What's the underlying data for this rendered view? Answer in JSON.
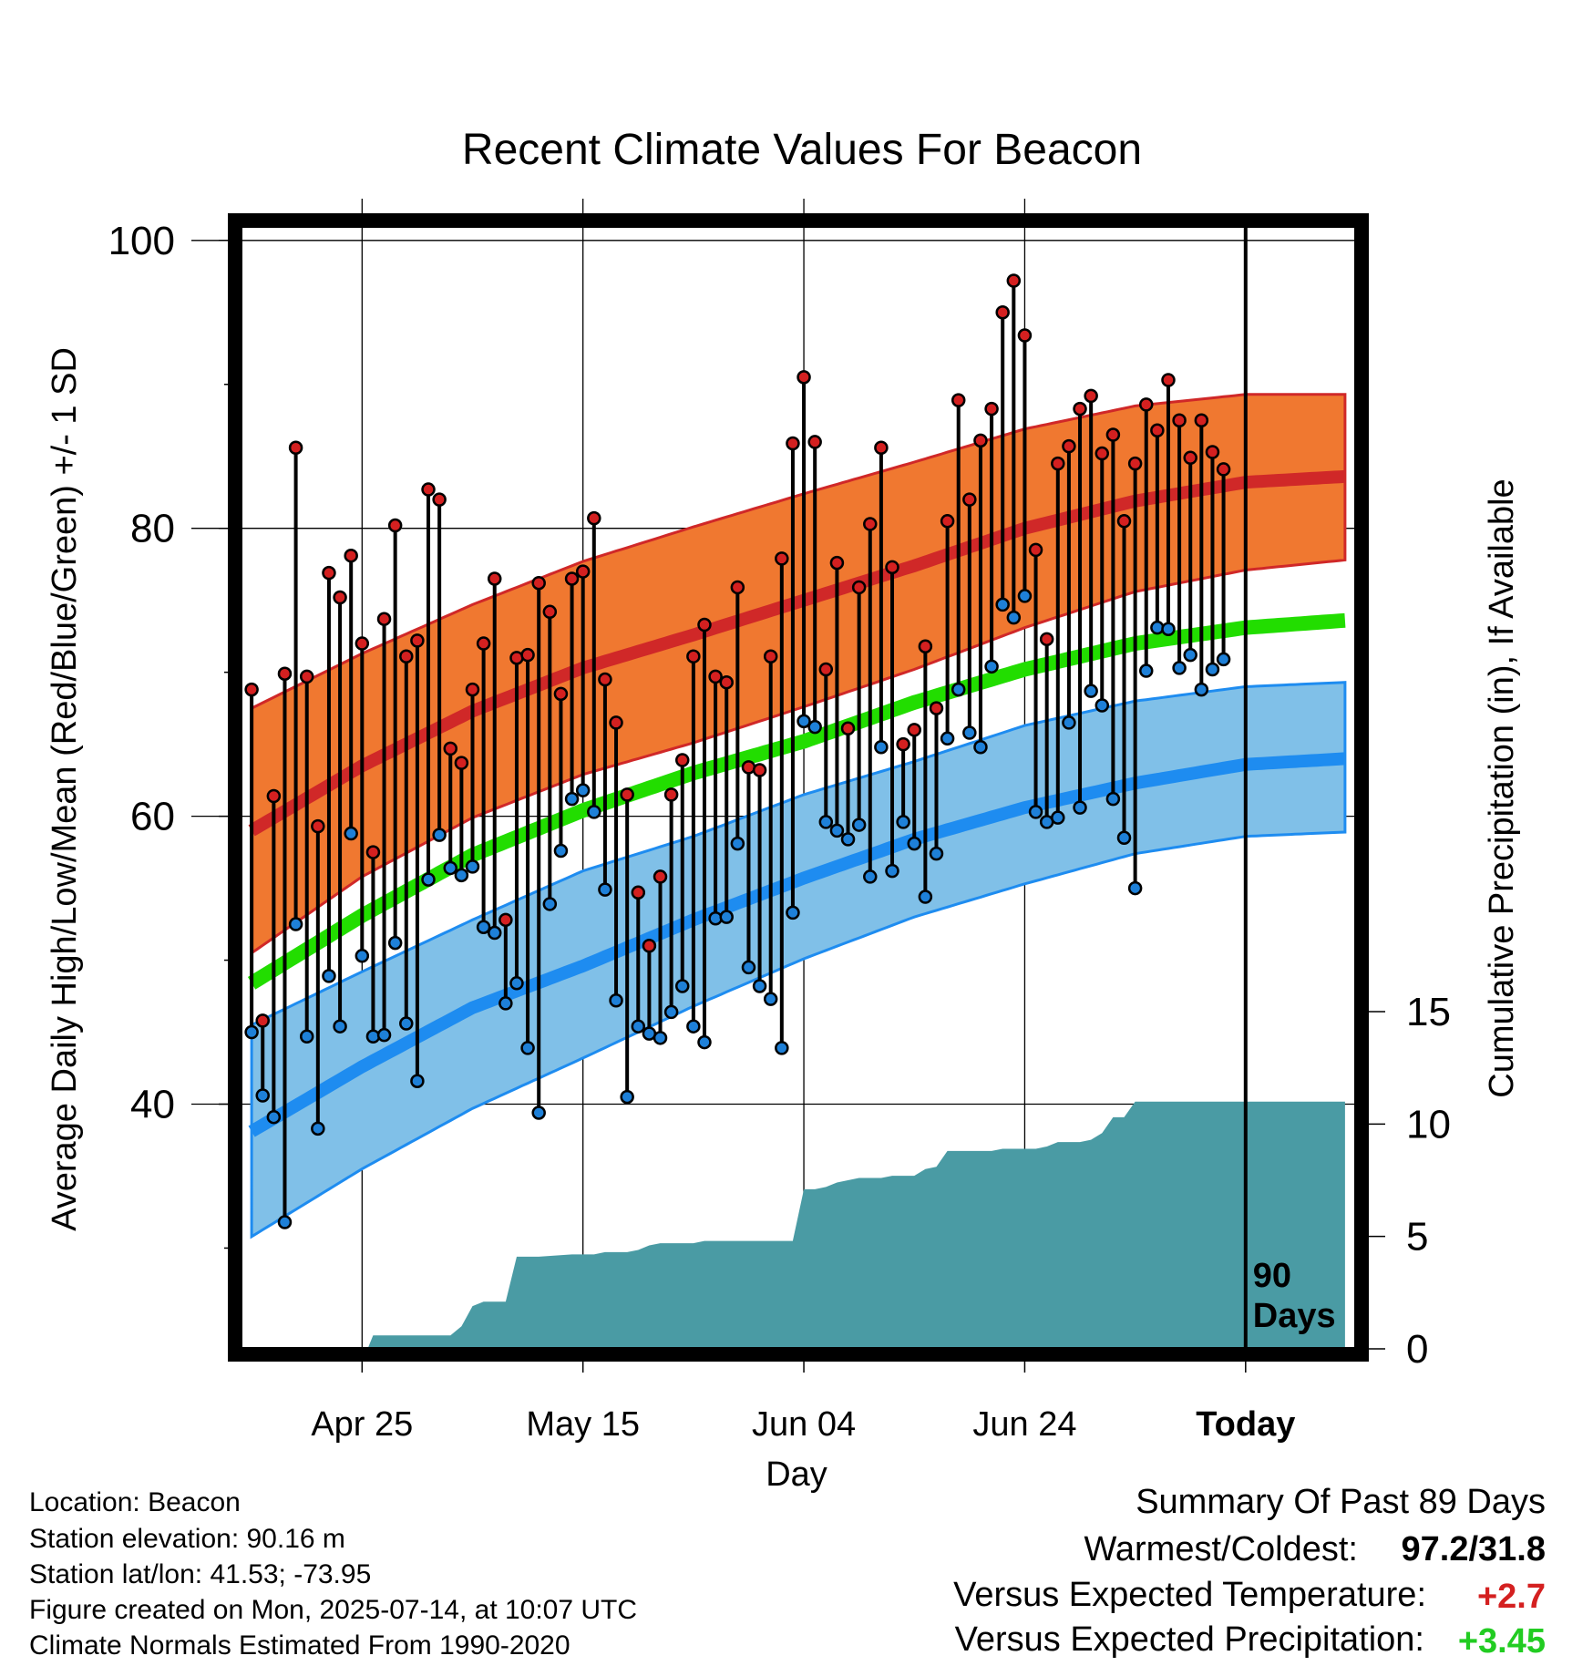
{
  "chart_data": {
    "type": "line",
    "title": "Recent Climate Values For Beacon",
    "xlabel": "Day",
    "ylabel": "Average Daily High/Low/Mean (Red/Blue/Green) +/- 1 SD",
    "y2label": "Cumulative Precipitation (in), If Available",
    "x_range": [
      -1,
      100
    ],
    "ylim": [
      23,
      101
    ],
    "y2lim": [
      0,
      15
    ],
    "y_ticks": [
      100,
      80,
      60,
      40
    ],
    "y2_ticks": [
      15,
      10,
      5,
      0
    ],
    "x_ticks": [
      {
        "label": "Apr 25",
        "day": 10
      },
      {
        "label": "May 15",
        "day": 30
      },
      {
        "label": "Jun 04",
        "day": 50
      },
      {
        "label": "Jun 24",
        "day": 70
      },
      {
        "label": "Today",
        "day": 90
      }
    ],
    "today_day": 90,
    "today_label_line1": "90",
    "today_label_line2": "Days",
    "grid": true,
    "colors": {
      "high_band": "#F07830",
      "high_mean": "#D02828",
      "mean": "#22DD00",
      "low_band": "#80C0E8",
      "low_mean": "#1E8CF0",
      "precip": "#4A9BA4",
      "high_marker": "#D42020",
      "low_marker": "#1E80D8",
      "warm_value": "#D42020",
      "precip_value": "#22CC22"
    },
    "normals": {
      "days": [
        0,
        10,
        20,
        30,
        40,
        50,
        60,
        70,
        80,
        90,
        99
      ],
      "high": [
        59.0,
        63.5,
        67.3,
        70.3,
        72.6,
        75.0,
        77.4,
        80.0,
        81.9,
        83.2,
        83.6
      ],
      "high_plus_sd": [
        67.5,
        71.3,
        74.7,
        77.7,
        80.1,
        82.4,
        84.6,
        86.9,
        88.5,
        89.3,
        89.3
      ],
      "high_minus_sd": [
        50.5,
        55.8,
        59.9,
        62.9,
        65.1,
        67.6,
        70.2,
        73.1,
        75.6,
        77.1,
        77.8
      ],
      "mean": [
        48.4,
        53.1,
        57.3,
        60.4,
        63.0,
        65.2,
        67.9,
        70.2,
        72.0,
        73.1,
        73.6
      ],
      "low": [
        38.1,
        42.6,
        46.7,
        49.6,
        52.8,
        55.7,
        58.4,
        60.6,
        62.3,
        63.6,
        64.0
      ],
      "low_plus_sd": [
        45.5,
        49.2,
        52.8,
        56.2,
        58.6,
        61.5,
        63.8,
        66.3,
        68.0,
        69.0,
        69.3
      ],
      "low_minus_sd": [
        30.8,
        35.5,
        39.7,
        43.2,
        46.8,
        50.1,
        53.0,
        55.3,
        57.4,
        58.6,
        58.9
      ]
    },
    "series": [
      {
        "name": "High",
        "values": [
          68.8,
          45.8,
          61.4,
          69.9,
          85.6,
          69.7,
          59.3,
          76.9,
          75.2,
          78.1,
          72.0,
          57.5,
          73.7,
          80.2,
          71.1,
          72.2,
          82.7,
          82.0,
          64.7,
          63.7,
          68.8,
          72.0,
          76.5,
          52.8,
          71.0,
          71.2,
          76.2,
          74.2,
          68.5,
          76.5,
          77.0,
          80.7,
          69.5,
          66.5,
          61.5,
          54.7,
          51.0,
          55.8,
          61.5,
          63.9,
          71.1,
          73.3,
          69.7,
          69.3,
          75.9,
          63.4,
          63.2,
          71.1,
          77.9,
          85.9,
          90.5,
          86.0,
          70.2,
          77.6,
          66.1,
          75.9,
          80.3,
          85.6,
          77.3,
          65.0,
          66.0,
          71.8,
          67.5,
          80.5,
          88.9,
          82.0,
          86.1,
          88.3,
          95.0,
          97.2,
          93.4,
          78.5,
          72.3,
          84.5,
          85.7,
          88.3,
          89.2,
          85.2,
          86.5,
          80.5,
          84.5,
          88.6,
          86.8,
          90.3,
          87.5,
          84.9,
          87.5,
          85.3,
          84.1
        ]
      },
      {
        "name": "Low",
        "values": [
          45.0,
          40.6,
          39.1,
          31.8,
          52.5,
          44.7,
          38.3,
          48.9,
          45.4,
          58.8,
          50.3,
          44.7,
          44.8,
          51.2,
          45.6,
          41.6,
          55.6,
          58.7,
          56.4,
          55.9,
          56.5,
          52.3,
          51.9,
          47.0,
          48.4,
          43.9,
          39.4,
          53.9,
          57.6,
          61.2,
          61.8,
          60.3,
          54.9,
          47.2,
          40.5,
          45.4,
          44.9,
          44.6,
          46.4,
          48.2,
          45.4,
          44.3,
          52.9,
          53.0,
          58.1,
          49.5,
          48.2,
          47.3,
          43.9,
          53.3,
          66.6,
          66.2,
          59.6,
          59.0,
          58.4,
          59.4,
          55.8,
          64.8,
          56.2,
          59.6,
          58.1,
          54.4,
          57.4,
          65.4,
          68.8,
          65.8,
          64.8,
          70.4,
          74.7,
          73.8,
          75.3,
          60.3,
          59.6,
          59.9,
          66.5,
          60.6,
          68.7,
          67.7,
          61.2,
          58.5,
          55.0,
          70.1,
          73.1,
          73.0,
          70.3,
          71.2,
          68.8,
          70.2,
          70.9
        ]
      },
      {
        "name": "Cumulative Precipitation",
        "days": [
          0,
          10.5,
          11,
          18,
          19,
          20,
          21,
          22,
          23,
          24,
          25,
          26,
          29,
          30,
          31,
          32,
          33,
          34,
          35,
          36,
          37,
          38,
          39,
          40,
          41,
          42,
          43,
          44,
          45,
          46,
          47,
          48,
          49,
          50,
          51,
          52,
          53,
          54,
          55,
          56,
          57,
          58,
          59,
          60,
          61,
          62,
          63,
          64,
          65,
          66,
          67,
          68,
          69,
          70,
          71,
          72,
          73,
          74,
          75,
          76,
          77,
          78,
          79,
          80,
          99
        ],
        "values": [
          0,
          0,
          0.6,
          0.6,
          1.0,
          1.9,
          2.1,
          2.1,
          2.1,
          4.1,
          4.1,
          4.1,
          4.2,
          4.2,
          4.2,
          4.3,
          4.3,
          4.3,
          4.4,
          4.6,
          4.7,
          4.7,
          4.7,
          4.7,
          4.8,
          4.8,
          4.8,
          4.8,
          4.8,
          4.8,
          4.8,
          4.8,
          4.8,
          7.1,
          7.1,
          7.2,
          7.4,
          7.5,
          7.6,
          7.6,
          7.6,
          7.7,
          7.7,
          7.7,
          8.0,
          8.1,
          8.8,
          8.8,
          8.8,
          8.8,
          8.8,
          8.9,
          8.9,
          8.9,
          8.9,
          9.0,
          9.2,
          9.2,
          9.2,
          9.3,
          9.6,
          10.3,
          10.3,
          11.0,
          11.0
        ]
      }
    ]
  },
  "info": {
    "location": "Location: Beacon",
    "elevation": "Station elevation: 90.16 m",
    "latlon": "Station lat/lon: 41.53; -73.95",
    "created": "Figure created on Mon, 2025-07-14, at 10:07 UTC",
    "normals": "Climate Normals Estimated From 1990-2020"
  },
  "summary": {
    "heading": "Summary Of Past 89 Days",
    "warm_cold_label": "Warmest/Coldest:",
    "warm_cold_value": "97.2/31.8",
    "temp_label": "Versus Expected Temperature:",
    "temp_value": "+2.7",
    "precip_label": "Versus Expected Precipitation:",
    "precip_value": "+3.45"
  }
}
